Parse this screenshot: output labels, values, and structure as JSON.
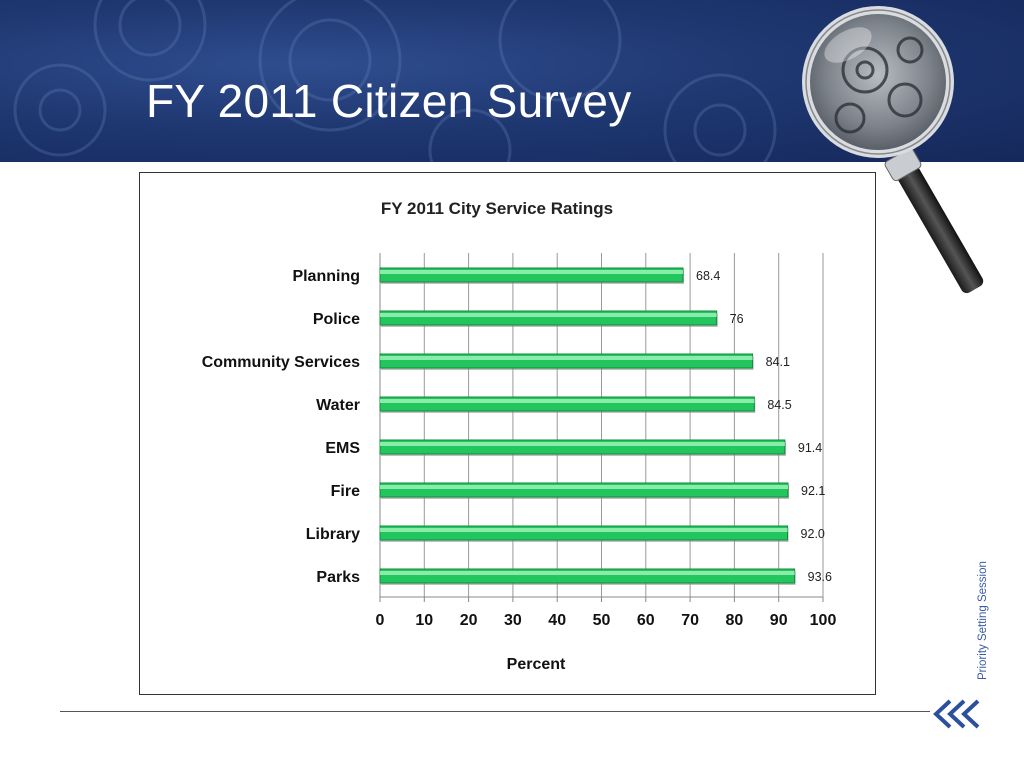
{
  "slide": {
    "title": "FY 2011 Citizen Survey",
    "side_label": "Priority Setting Session"
  },
  "icons": {
    "magnifier": "magnifying-glass-icon",
    "nav": "double-chevron-left-icon"
  },
  "colors": {
    "header_bg": "#1f3872",
    "bar_green": "#22c55e",
    "side_label": "#3a5aa8"
  },
  "chart_data": {
    "type": "bar",
    "orientation": "horizontal",
    "title": "FY 2011 City Service Ratings",
    "xlabel": "Percent",
    "ylabel": "",
    "xlim": [
      0,
      100
    ],
    "ticks": [
      0,
      10,
      20,
      30,
      40,
      50,
      60,
      70,
      80,
      90,
      100
    ],
    "grid": true,
    "categories": [
      "Planning",
      "Police",
      "Community Services",
      "Water",
      "EMS",
      "Fire",
      "Library",
      "Parks"
    ],
    "values": [
      68.4,
      76,
      84.1,
      84.5,
      91.4,
      92.1,
      92.0,
      93.6
    ],
    "labels": [
      "68.4",
      "76",
      "84.1",
      "84.5",
      "91.4",
      "92.1",
      "92.0",
      "93.6"
    ]
  }
}
